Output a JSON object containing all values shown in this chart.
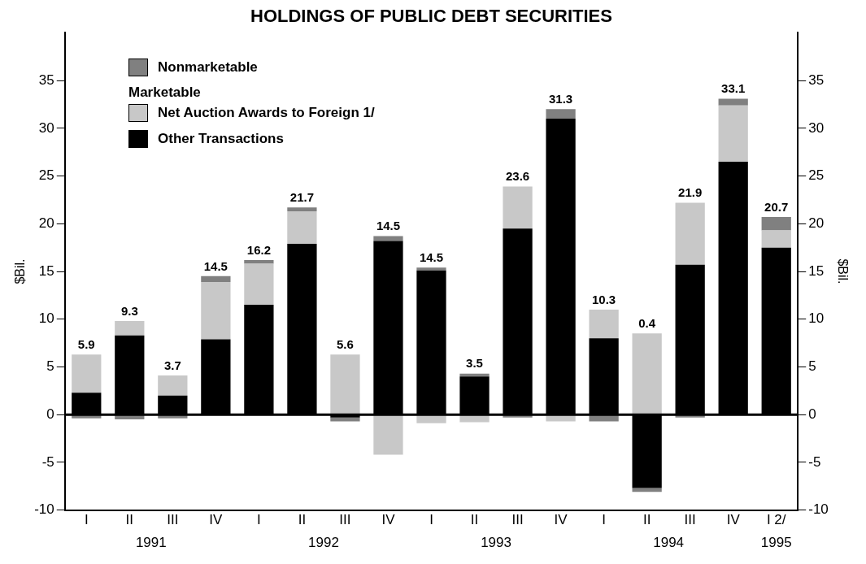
{
  "chart_data": {
    "type": "bar",
    "title": "HOLDINGS OF PUBLIC DEBT SECURITIES",
    "ylabel": "$Bil.",
    "y2label": "$Bil.",
    "legend_title": "Marketable",
    "categories": [
      "I",
      "II",
      "III",
      "IV",
      "I",
      "II",
      "III",
      "IV",
      "I",
      "II",
      "III",
      "IV",
      "I",
      "II",
      "III",
      "IV",
      "I 2/"
    ],
    "annotations": [
      "1991",
      "1992",
      "1993",
      "1994",
      "1995"
    ],
    "stacked": true,
    "series": [
      {
        "name": "Other Transactions",
        "color": "#000000",
        "values": [
          2.3,
          8.3,
          2.0,
          7.9,
          11.5,
          17.9,
          -0.3,
          18.2,
          15.1,
          4.0,
          19.5,
          31.0,
          8.0,
          -7.7,
          15.7,
          26.5,
          17.5
        ]
      },
      {
        "name": "Net Auction Awards to Foreign 1/",
        "color": "#c8c8c8",
        "values": [
          4.0,
          1.5,
          2.1,
          6.0,
          4.3,
          3.4,
          6.3,
          -4.2,
          -0.9,
          -0.8,
          4.4,
          -0.7,
          3.0,
          8.5,
          6.5,
          5.9,
          1.8
        ]
      },
      {
        "name": "Nonmarketable",
        "color": "#808080",
        "values": [
          -0.4,
          -0.5,
          -0.4,
          0.6,
          0.4,
          0.4,
          -0.4,
          0.5,
          0.3,
          0.3,
          -0.3,
          1.0,
          -0.7,
          -0.4,
          -0.3,
          0.7,
          1.4
        ]
      }
    ],
    "totals": [
      "5.9",
      "9.3",
      "3.7",
      "14.5",
      "16.2",
      "21.7",
      "5.6",
      "14.5",
      "14.5",
      "3.5",
      "23.6",
      "31.3",
      "10.3",
      "0.4",
      "21.9",
      "33.1",
      "20.7"
    ],
    "ylim": [
      -10,
      40
    ],
    "yticks": [
      -10,
      -5,
      0,
      5,
      10,
      15,
      20,
      25,
      30,
      35
    ],
    "y2lim": [
      -10,
      40
    ],
    "y2ticks": [
      -10,
      -5,
      0,
      5,
      10,
      15,
      20,
      25,
      30,
      35
    ],
    "ref_lines": [
      {
        "axis": "y",
        "value": 0,
        "color": "#000000"
      }
    ],
    "grid": false,
    "legend": "top left"
  }
}
